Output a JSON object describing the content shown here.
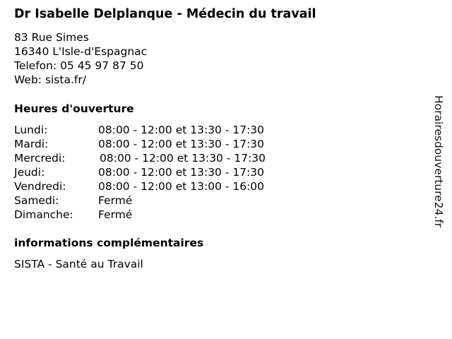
{
  "title": "Dr Isabelle Delplanque - Médecin du travail",
  "address": {
    "street": "83 Rue Simes",
    "city": "16340 L'Isle-d'Espagnac",
    "phone": "Telefon: 05 45 97 87 50",
    "web": "Web: sista.fr/"
  },
  "hours_heading": "Heures d'ouverture",
  "hours": [
    {
      "day": "Lundi:",
      "time": "08:00 - 12:00 et 13:30 - 17:30"
    },
    {
      "day": "Mardi:",
      "time": "08:00 - 12:00 et 13:30 - 17:30"
    },
    {
      "day": "Mercredi:",
      "time": "08:00 - 12:00 et 13:30 - 17:30"
    },
    {
      "day": "Jeudi:",
      "time": "08:00 - 12:00 et 13:30 - 17:30"
    },
    {
      "day": "Vendredi:",
      "time": "08:00 - 12:00 et 13:00 - 16:00"
    },
    {
      "day": "Samedi:",
      "time": "Fermé"
    },
    {
      "day": "Dimanche:",
      "time": "Fermé"
    }
  ],
  "info_heading": "informations complémentaires",
  "info_text": "SISTA - Santé au Travail",
  "watermark": "Horairesdouverture24.fr"
}
